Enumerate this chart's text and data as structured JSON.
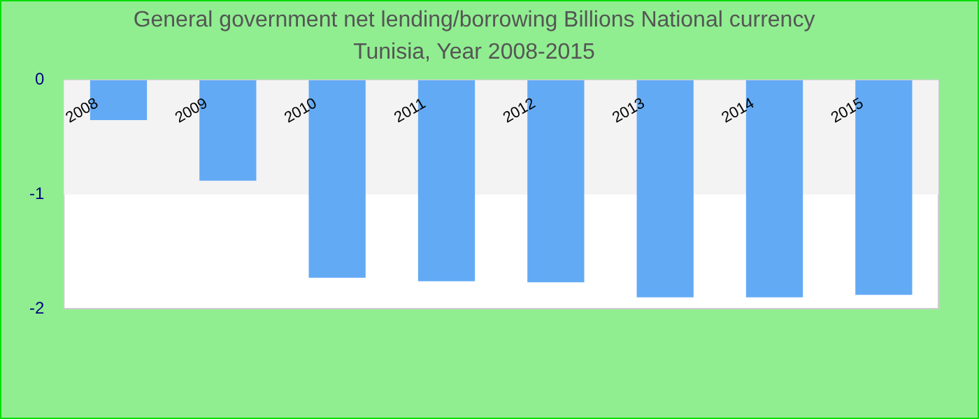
{
  "chart_data": {
    "type": "bar",
    "title": "General government net lending/borrowing Billions National currency",
    "subtitle": "Tunisia, Year 2008-2015",
    "categories": [
      "2008",
      "2009",
      "2010",
      "2011",
      "2012",
      "2013",
      "2014",
      "2015"
    ],
    "values": [
      -0.35,
      -0.88,
      -1.73,
      -1.76,
      -1.77,
      -1.9,
      -1.9,
      -1.88
    ],
    "color": "#63aaf5",
    "ylim": [
      -2,
      0
    ],
    "yticks": [
      0,
      -1,
      -2
    ],
    "grid": false,
    "bands": [
      {
        "axis": "y",
        "from": -1,
        "to": 0,
        "color": "#f3f3f3"
      }
    ]
  }
}
